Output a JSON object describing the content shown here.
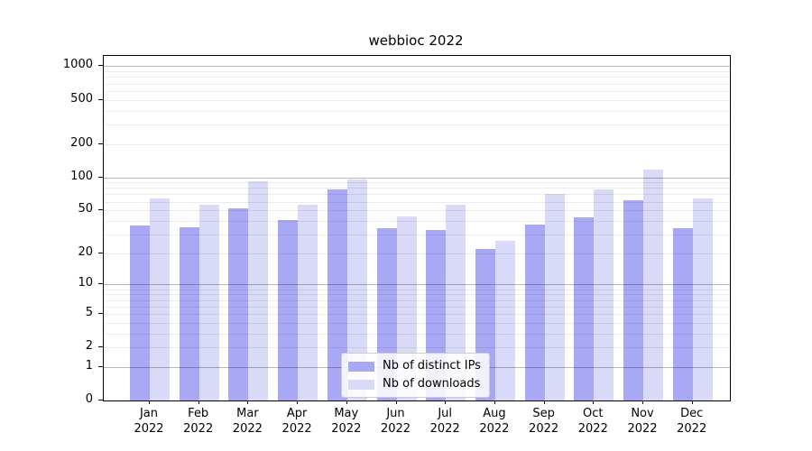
{
  "chart_data": {
    "type": "bar",
    "title": "webbioc 2022",
    "year_label": "2022",
    "categories": [
      "Jan",
      "Feb",
      "Mar",
      "Apr",
      "May",
      "Jun",
      "Jul",
      "Aug",
      "Sep",
      "Oct",
      "Nov",
      "Dec"
    ],
    "series": [
      {
        "name": "Nb of distinct IPs",
        "color": "#a8a8f5",
        "values": [
          36,
          35,
          52,
          41,
          77,
          34,
          33,
          22,
          37,
          43,
          62,
          34
        ]
      },
      {
        "name": "Nb of downloads",
        "color": "#d9d9f8",
        "values": [
          64,
          56,
          92,
          56,
          96,
          44,
          56,
          26,
          70,
          78,
          118,
          64
        ]
      }
    ],
    "yscale": "log1p",
    "y_ticks": [
      0,
      1,
      2,
      5,
      10,
      20,
      50,
      100,
      200,
      500,
      1000
    ],
    "ylim": [
      0,
      1240
    ],
    "grid": true,
    "legend_position": "lower-center",
    "colors": {
      "background": "#ffffff",
      "axis": "#000000",
      "text": "#000000",
      "major_grid": "#b9b9b9",
      "minor_grid": "#e9e9e9"
    }
  }
}
